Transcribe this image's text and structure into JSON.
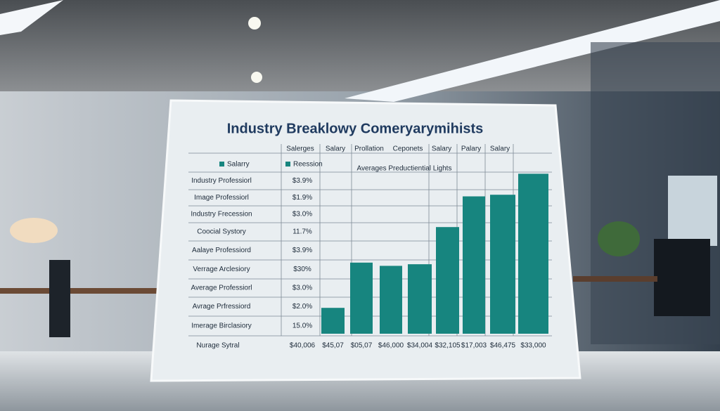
{
  "title": "Industry Breaklowy Comeryarymihists",
  "header": [
    "Salerges",
    "Salary",
    "Prollation",
    "Ceponets",
    "Salary",
    "Palary",
    "Salary"
  ],
  "legend": [
    "Salarry",
    "Reession"
  ],
  "rows": [
    [
      "Industry Professiorl",
      "$3.9%"
    ],
    [
      "Image Professiorl",
      "$1.9%"
    ],
    [
      "Industry Frecession",
      "$3.0%"
    ],
    [
      "Coocial Systory",
      "11.7%"
    ],
    [
      "Aalaye Professiord",
      "$3.9%"
    ],
    [
      "Verrage Arclesiory",
      "$30%"
    ],
    [
      "Average Professiorl",
      "$3.0%"
    ],
    [
      "Avrage Prfressiord",
      "$2.0%"
    ],
    [
      "Imerage Birclasiory",
      "15.0%"
    ]
  ],
  "footer": {
    "label": "Nurage Sytral",
    "values": [
      "$40,006",
      "$45,07",
      "$05,07",
      "$46,000",
      "$34,004",
      "$32,105",
      "$17,003",
      "$46,475",
      "$33,000"
    ]
  },
  "chart_data": {
    "type": "bar",
    "title": "Averages Preductiential Lights",
    "values": [
      16,
      44,
      42,
      43,
      66,
      85,
      86,
      99
    ],
    "color": "#17857f",
    "ylim": [
      0,
      100
    ]
  }
}
